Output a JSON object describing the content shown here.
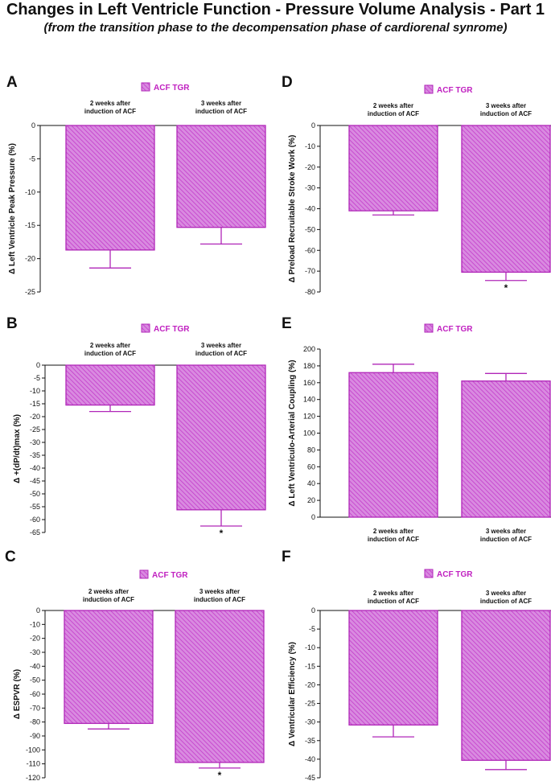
{
  "header": {
    "title": "Changes in Left Ventricle Function - Pressure Volume Analysis - Part 1",
    "subtitle": "(from the transition phase to the decompensation phase of cardiorenal synrome)"
  },
  "colors": {
    "bar_fill": "#d98ae0",
    "bar_hatch": "#c33ccb",
    "bar_stroke": "#b027b8",
    "legend_text": "#c020c0"
  },
  "chart_data": [
    {
      "panel": "A",
      "type": "bar",
      "legend": "ACF TGR",
      "categories": [
        "2 weeks after\ninduction of ACF",
        "3 weeks after\ninduction of ACF"
      ],
      "series": [
        {
          "name": "ACF TGR",
          "values": [
            -18.7,
            -15.3
          ],
          "errors": [
            2.7,
            2.5
          ]
        }
      ],
      "ylabel": "Δ Left Ventricle Peak Pressure (%)",
      "ylim": [
        -25,
        0
      ],
      "yticks": [
        0,
        -5,
        -10,
        -15,
        -20,
        -25
      ],
      "significance": [
        "",
        ""
      ],
      "category_labels_position": "top",
      "grid": false
    },
    {
      "panel": "B",
      "type": "bar",
      "legend": "ACF TGR",
      "categories": [
        "2 weeks after\ninduction of ACF",
        "3 weeks after\ninduction of ACF"
      ],
      "series": [
        {
          "name": "ACF TGR",
          "values": [
            -15.5,
            -56.2
          ],
          "errors": [
            2.5,
            6.3
          ]
        }
      ],
      "ylabel": "Δ +(dP/dt)max (%)",
      "ylim": [
        -65,
        0
      ],
      "yticks": [
        0,
        -5,
        -10,
        -15,
        -20,
        -25,
        -30,
        -35,
        -40,
        -45,
        -50,
        -55,
        -60,
        -65
      ],
      "significance": [
        "",
        "*"
      ],
      "category_labels_position": "top",
      "grid": false
    },
    {
      "panel": "C",
      "type": "bar",
      "legend": "ACF TGR",
      "categories": [
        "2 weeks after\ninduction of ACF",
        "3 weeks after\ninduction of ACF"
      ],
      "series": [
        {
          "name": "ACF TGR",
          "values": [
            -81,
            -109
          ],
          "errors": [
            4,
            4
          ]
        }
      ],
      "ylabel": "Δ ESPVR (%)",
      "ylim": [
        -120,
        0
      ],
      "yticks": [
        0,
        -10,
        -20,
        -30,
        -40,
        -50,
        -60,
        -70,
        -80,
        -90,
        -100,
        -110,
        -120
      ],
      "significance": [
        "",
        "*"
      ],
      "category_labels_position": "top",
      "grid": false
    },
    {
      "panel": "D",
      "type": "bar",
      "legend": "ACF TGR",
      "categories": [
        "2 weeks after\ninduction of ACF",
        "3 weeks after\ninduction of ACF"
      ],
      "series": [
        {
          "name": "ACF TGR",
          "values": [
            -41,
            -70.5
          ],
          "errors": [
            2,
            4
          ]
        }
      ],
      "ylabel": "Δ Preload Recruitable Stroke Work (%)",
      "ylim": [
        -80,
        0
      ],
      "yticks": [
        0,
        -10,
        -20,
        -30,
        -40,
        -50,
        -60,
        -70,
        -80
      ],
      "significance": [
        "",
        "*"
      ],
      "category_labels_position": "top",
      "grid": false
    },
    {
      "panel": "E",
      "type": "bar",
      "legend": "ACF TGR",
      "categories": [
        "2 weeks after\ninduction of ACF",
        "3 weeks after\ninduction of ACF"
      ],
      "series": [
        {
          "name": "ACF TGR",
          "values": [
            172,
            162
          ],
          "errors": [
            10,
            9
          ]
        }
      ],
      "ylabel": "Δ Left Ventriculo-Arterial Coupling (%)",
      "ylim": [
        0,
        200
      ],
      "yticks": [
        0,
        20,
        40,
        60,
        80,
        100,
        120,
        140,
        160,
        180,
        200
      ],
      "significance": [
        "",
        ""
      ],
      "category_labels_position": "bottom",
      "grid": false
    },
    {
      "panel": "F",
      "type": "bar",
      "legend": "ACF TGR",
      "categories": [
        "2 weeks after\ninduction of ACF",
        "3 weeks after\ninduction of ACF"
      ],
      "series": [
        {
          "name": "ACF TGR",
          "values": [
            -30.8,
            -40.3
          ],
          "errors": [
            3.2,
            2.5
          ]
        }
      ],
      "ylabel": "Δ Ventricular Efficiency (%)",
      "ylim": [
        -45,
        0
      ],
      "yticks": [
        0,
        -5,
        -10,
        -15,
        -20,
        -25,
        -30,
        -35,
        -40,
        -45
      ],
      "significance": [
        "",
        ""
      ],
      "category_labels_position": "top",
      "grid": false
    }
  ]
}
